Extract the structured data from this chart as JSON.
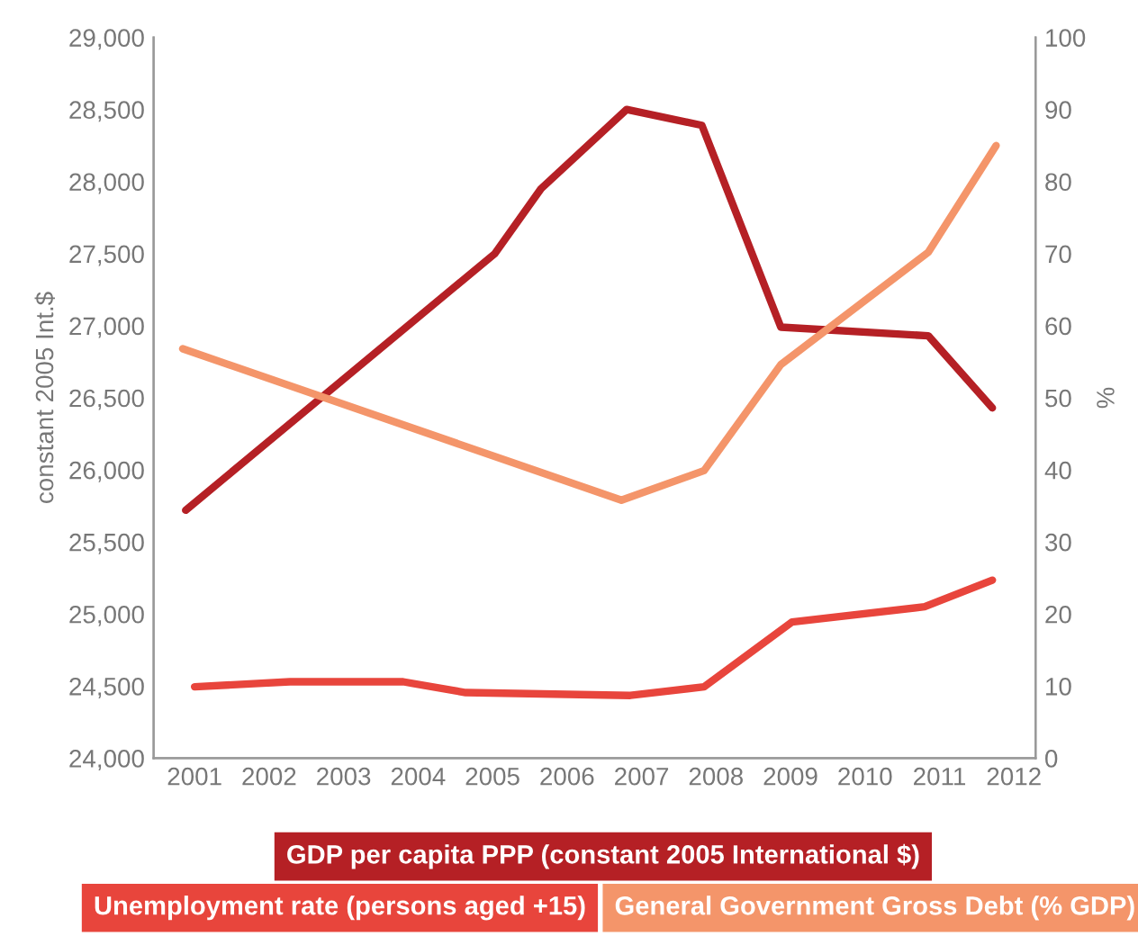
{
  "chart_data": {
    "type": "line",
    "ylabel": "constant 2005 Int.$",
    "y2label": "%",
    "xlim": [
      2000.45,
      2012.29
    ],
    "xticks": [
      2001,
      2002,
      2003,
      2004,
      2005,
      2006,
      2007,
      2008,
      2009,
      2010,
      2011,
      2012
    ],
    "ylim": [
      24000,
      29000
    ],
    "yticks": [
      {
        "value": 24000,
        "label": "24,000"
      },
      {
        "value": 24500,
        "label": "24,500"
      },
      {
        "value": 25000,
        "label": "25,000"
      },
      {
        "value": 25500,
        "label": "25,500"
      },
      {
        "value": 26000,
        "label": "26,000"
      },
      {
        "value": 26500,
        "label": "26,500"
      },
      {
        "value": 27000,
        "label": "27,000"
      },
      {
        "value": 27500,
        "label": "27,500"
      },
      {
        "value": 28000,
        "label": "28,000"
      },
      {
        "value": 28500,
        "label": "28,500"
      },
      {
        "value": 29000,
        "label": "29,000"
      }
    ],
    "y2lim": [
      0,
      100
    ],
    "y2ticks": [
      0,
      10,
      20,
      30,
      40,
      50,
      60,
      70,
      80,
      90,
      100
    ],
    "grid": false,
    "legend": "bottom",
    "marker": "none",
    "line_style": "solid",
    "series": [
      {
        "name": "GDP per capita PPP (constant 2005 International $)",
        "color": "#b52025",
        "x": [
          2000.88,
          2005.03,
          2005.65,
          2006.8,
          2007.81,
          2008.87,
          2010.85,
          2011.71
        ],
        "values": [
          25720,
          27500,
          27950,
          28500,
          28390,
          26990,
          26930,
          26430
        ]
      },
      {
        "name": "Unemployment rate (persons aged +15)",
        "color": "#e8453c",
        "axis": "y2",
        "x": [
          2001.0,
          2002.28,
          2003.8,
          2004.64,
          2006.85,
          2007.84,
          2009.02,
          2010.8,
          2011.71
        ],
        "values": [
          9.9,
          10.6,
          10.6,
          9.1,
          8.7,
          9.9,
          18.9,
          21.0,
          24.7
        ]
      },
      {
        "name": "General Government Gross Debt (% GDP)",
        "color": "#f4956a",
        "axis": "y2",
        "x": [
          2000.84,
          2006.73,
          2007.84,
          2008.87,
          2010.85,
          2011.76
        ],
        "values": [
          56.8,
          35.8,
          39.9,
          54.6,
          70.2,
          85.0
        ]
      }
    ]
  }
}
